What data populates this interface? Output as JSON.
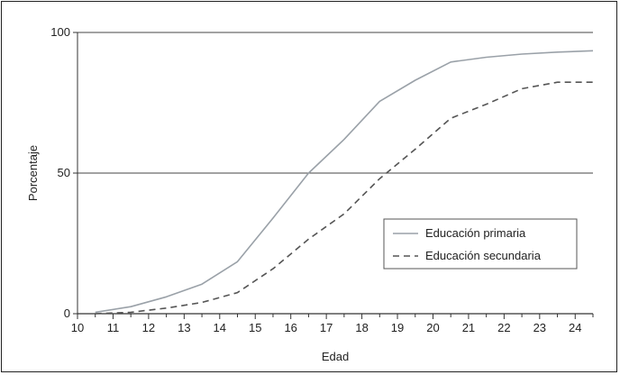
{
  "chart_data": {
    "type": "line",
    "title": "",
    "xlabel": "Edad",
    "ylabel": "Porcentaje",
    "xlim": [
      10,
      24.5
    ],
    "ylim": [
      0,
      100
    ],
    "x_ticks": [
      "10",
      "11",
      "12",
      "13",
      "14",
      "15",
      "16",
      "17",
      "18",
      "19",
      "20",
      "21",
      "22",
      "23",
      "24"
    ],
    "y_ticks": [
      "0",
      "50",
      "100"
    ],
    "grid": "horizontal at 50 and 100",
    "legend_position": "right, middle",
    "series": [
      {
        "name": "Educación primaria",
        "style": "solid",
        "color": "#9aa1a8",
        "x": [
          10.5,
          11.5,
          12.5,
          13.5,
          14.5,
          15.5,
          16.5,
          17.5,
          18.5,
          19.5,
          20.5,
          21.5,
          22.5,
          23.5,
          24.5
        ],
        "y": [
          0.5,
          2.5,
          6,
          10.5,
          18.5,
          34,
          50,
          62,
          75.5,
          83,
          89.5,
          91.2,
          92.3,
          93,
          93.5
        ]
      },
      {
        "name": "Educación secundaria",
        "style": "dashed",
        "color": "#555555",
        "x": [
          10.5,
          11.5,
          12.5,
          13.5,
          14.5,
          15.5,
          16.5,
          17.5,
          18.5,
          19.5,
          20.5,
          21.5,
          22.5,
          23.5,
          24.5
        ],
        "y": [
          0,
          0.5,
          2,
          4,
          7.5,
          16,
          26.5,
          35.5,
          48,
          58.5,
          69.5,
          74.5,
          80,
          82.3,
          82.3
        ]
      }
    ]
  }
}
